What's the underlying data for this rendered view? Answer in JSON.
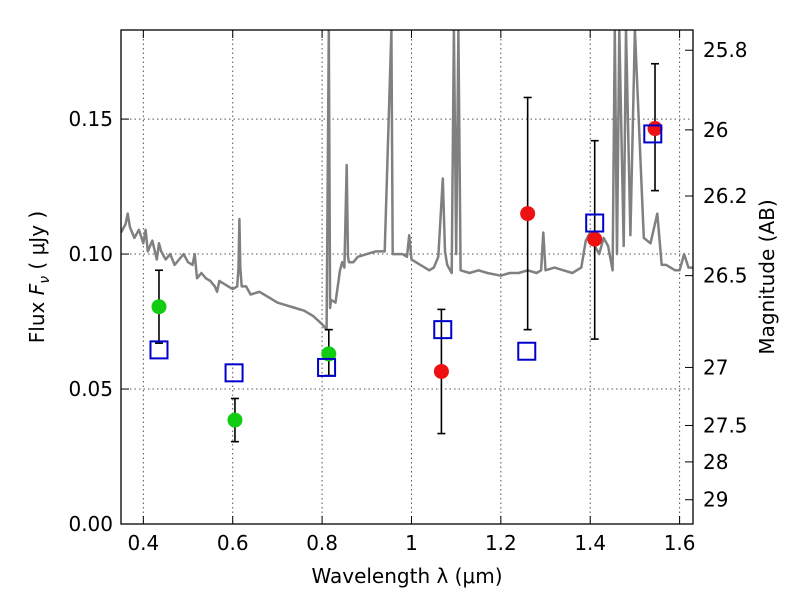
{
  "chart_data": {
    "type": "scatter",
    "xlabel": "Wavelength  λ (μm)",
    "ylabel_prefix": "Flux  ",
    "ylabel_var": "F",
    "ylabel_sub": "ν",
    "ylabel_suffix": "  ( μJy )",
    "y2label": "Magnitude (AB)",
    "xlim": [
      0.35,
      1.63
    ],
    "ylim": [
      0.0,
      0.183
    ],
    "xticks": [
      0.4,
      0.6,
      0.8,
      1.0,
      1.2,
      1.4,
      1.6
    ],
    "xtick_labels": [
      "0.4",
      "0.6",
      "0.8",
      "1",
      "1.2",
      "1.4",
      "1.6"
    ],
    "yticks": [
      0.0,
      0.05,
      0.1,
      0.15
    ],
    "ytick_labels": [
      "0.00",
      "0.05",
      "0.10",
      "0.15"
    ],
    "y2ticks": [
      {
        "label": "25.8",
        "flux": 0.1755
      },
      {
        "label": "26",
        "flux": 0.146
      },
      {
        "label": "26.2",
        "flux": 0.1215
      },
      {
        "label": "26.5",
        "flux": 0.092
      },
      {
        "label": "27",
        "flux": 0.058
      },
      {
        "label": "27.5",
        "flux": 0.0365
      },
      {
        "label": "28",
        "flux": 0.023
      },
      {
        "label": "29",
        "flux": 0.009
      }
    ],
    "grid": true,
    "colors": {
      "spectrum": "#808080",
      "green": "#11cc11",
      "red": "#ee1111",
      "model_box": "#0000cc",
      "errorbar": "#000000",
      "grid": "#555555"
    },
    "series": [
      {
        "marker": "circle",
        "color": "green",
        "points": [
          {
            "x": 0.435,
            "y": 0.0805,
            "lo": 0.067,
            "hi": 0.094
          },
          {
            "x": 0.605,
            "y": 0.0385,
            "lo": 0.0305,
            "hi": 0.0465
          },
          {
            "x": 0.815,
            "y": 0.063,
            "lo": 0.055,
            "hi": 0.072
          }
        ]
      },
      {
        "marker": "circle",
        "color": "red",
        "points": [
          {
            "x": 1.067,
            "y": 0.0565,
            "lo": 0.0335,
            "hi": 0.0795
          },
          {
            "x": 1.26,
            "y": 0.115,
            "lo": 0.072,
            "hi": 0.158
          },
          {
            "x": 1.41,
            "y": 0.1055,
            "lo": 0.0685,
            "hi": 0.142
          },
          {
            "x": 1.545,
            "y": 0.1465,
            "lo": 0.1235,
            "hi": 0.1705
          }
        ]
      },
      {
        "marker": "open-square",
        "color": "model_box",
        "points": [
          {
            "x": 0.435,
            "y": 0.0645
          },
          {
            "x": 0.603,
            "y": 0.056
          },
          {
            "x": 0.81,
            "y": 0.058
          },
          {
            "x": 1.07,
            "y": 0.072
          },
          {
            "x": 1.258,
            "y": 0.064
          },
          {
            "x": 1.41,
            "y": 0.1115
          },
          {
            "x": 1.54,
            "y": 0.1445
          }
        ]
      },
      {
        "marker": "line",
        "color": "spectrum",
        "points": [
          [
            0.35,
            0.108
          ],
          [
            0.36,
            0.111
          ],
          [
            0.365,
            0.115
          ],
          [
            0.37,
            0.11
          ],
          [
            0.38,
            0.106
          ],
          [
            0.39,
            0.109
          ],
          [
            0.4,
            0.104
          ],
          [
            0.405,
            0.109
          ],
          [
            0.41,
            0.101
          ],
          [
            0.42,
            0.105
          ],
          [
            0.43,
            0.098
          ],
          [
            0.435,
            0.104
          ],
          [
            0.44,
            0.101
          ],
          [
            0.45,
            0.098
          ],
          [
            0.46,
            0.1
          ],
          [
            0.47,
            0.096
          ],
          [
            0.48,
            0.098
          ],
          [
            0.49,
            0.1
          ],
          [
            0.5,
            0.097
          ],
          [
            0.51,
            0.096
          ],
          [
            0.515,
            0.1
          ],
          [
            0.52,
            0.091
          ],
          [
            0.53,
            0.093
          ],
          [
            0.54,
            0.091
          ],
          [
            0.55,
            0.09
          ],
          [
            0.56,
            0.088
          ],
          [
            0.565,
            0.086
          ],
          [
            0.57,
            0.09
          ],
          [
            0.58,
            0.089
          ],
          [
            0.59,
            0.088
          ],
          [
            0.6,
            0.087
          ],
          [
            0.61,
            0.088
          ],
          [
            0.613,
            0.095
          ],
          [
            0.615,
            0.113
          ],
          [
            0.617,
            0.095
          ],
          [
            0.62,
            0.088
          ],
          [
            0.63,
            0.088
          ],
          [
            0.64,
            0.085
          ],
          [
            0.66,
            0.086
          ],
          [
            0.68,
            0.084
          ],
          [
            0.7,
            0.082
          ],
          [
            0.72,
            0.081
          ],
          [
            0.74,
            0.08
          ],
          [
            0.76,
            0.079
          ],
          [
            0.78,
            0.077
          ],
          [
            0.8,
            0.074
          ],
          [
            0.81,
            0.072
          ],
          [
            0.815,
            0.183
          ],
          [
            0.818,
            0.08
          ],
          [
            0.82,
            0.083
          ],
          [
            0.83,
            0.082
          ],
          [
            0.84,
            0.094
          ],
          [
            0.845,
            0.097
          ],
          [
            0.85,
            0.095
          ],
          [
            0.855,
            0.133
          ],
          [
            0.858,
            0.099
          ],
          [
            0.86,
            0.097
          ],
          [
            0.87,
            0.097
          ],
          [
            0.88,
            0.099
          ],
          [
            0.9,
            0.1
          ],
          [
            0.92,
            0.101
          ],
          [
            0.94,
            0.101
          ],
          [
            0.955,
            0.183
          ],
          [
            0.958,
            0.1
          ],
          [
            0.97,
            0.1
          ],
          [
            0.98,
            0.1
          ],
          [
            0.99,
            0.099
          ],
          [
            0.995,
            0.107
          ],
          [
            1.0,
            0.098
          ],
          [
            1.02,
            0.096
          ],
          [
            1.04,
            0.094
          ],
          [
            1.05,
            0.095
          ],
          [
            1.06,
            0.099
          ],
          [
            1.07,
            0.128
          ],
          [
            1.075,
            0.101
          ],
          [
            1.08,
            0.096
          ],
          [
            1.09,
            0.093
          ],
          [
            1.095,
            0.183
          ],
          [
            1.1,
            0.1
          ],
          [
            1.105,
            0.183
          ],
          [
            1.11,
            0.094
          ],
          [
            1.13,
            0.093
          ],
          [
            1.15,
            0.094
          ],
          [
            1.17,
            0.093
          ],
          [
            1.2,
            0.092
          ],
          [
            1.22,
            0.093
          ],
          [
            1.24,
            0.093
          ],
          [
            1.26,
            0.094
          ],
          [
            1.28,
            0.093
          ],
          [
            1.29,
            0.094
          ],
          [
            1.295,
            0.108
          ],
          [
            1.3,
            0.094
          ],
          [
            1.32,
            0.095
          ],
          [
            1.34,
            0.094
          ],
          [
            1.36,
            0.093
          ],
          [
            1.38,
            0.095
          ],
          [
            1.39,
            0.105
          ],
          [
            1.4,
            0.108
          ],
          [
            1.41,
            0.103
          ],
          [
            1.42,
            0.1
          ],
          [
            1.43,
            0.106
          ],
          [
            1.44,
            0.103
          ],
          [
            1.45,
            0.094
          ],
          [
            1.455,
            0.183
          ],
          [
            1.46,
            0.1
          ],
          [
            1.465,
            0.183
          ],
          [
            1.475,
            0.103
          ],
          [
            1.48,
            0.183
          ],
          [
            1.49,
            0.107
          ],
          [
            1.5,
            0.183
          ],
          [
            1.52,
            0.106
          ],
          [
            1.535,
            0.104
          ],
          [
            1.55,
            0.115
          ],
          [
            1.56,
            0.096
          ],
          [
            1.57,
            0.096
          ],
          [
            1.59,
            0.094
          ],
          [
            1.6,
            0.094
          ],
          [
            1.61,
            0.1
          ],
          [
            1.62,
            0.095
          ],
          [
            1.63,
            0.095
          ]
        ]
      }
    ]
  }
}
